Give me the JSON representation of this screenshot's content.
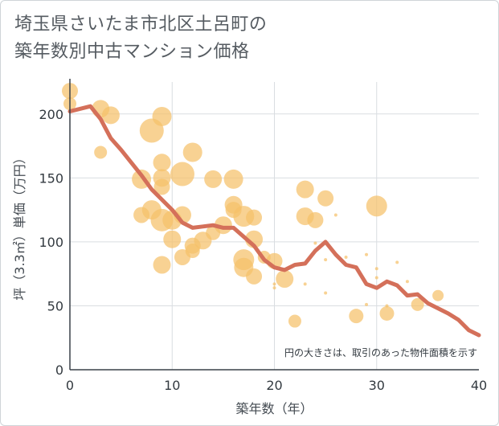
{
  "title": "埼玉県さいたま市北区土呂町の\n築年数別中古マンション価格",
  "chart_data": {
    "type": "scatter",
    "title": "埼玉県さいたま市北区土呂町の築年数別中古マンション価格",
    "xlabel": "築年数（年）",
    "ylabel": "坪（3.3㎡）単価（万円）",
    "xlim": [
      0,
      40
    ],
    "ylim": [
      0,
      225
    ],
    "xticks": [
      0,
      10,
      20,
      30,
      40
    ],
    "yticks": [
      0,
      50,
      100,
      150,
      200
    ],
    "grid": true,
    "note": "円の大きさは、取引のあった物件面積を示す",
    "colors": {
      "bubble": "#f5c06a",
      "line": "#d4705a",
      "grid": "#d9dde1"
    },
    "series": [
      {
        "kind": "bubble",
        "points": [
          {
            "x": 0,
            "y": 218,
            "s": 10
          },
          {
            "x": 0,
            "y": 208,
            "s": 8
          },
          {
            "x": 3,
            "y": 204,
            "s": 11
          },
          {
            "x": 4,
            "y": 199,
            "s": 11
          },
          {
            "x": 3,
            "y": 170,
            "s": 8
          },
          {
            "x": 8,
            "y": 187,
            "s": 15
          },
          {
            "x": 9,
            "y": 198,
            "s": 12
          },
          {
            "x": 9,
            "y": 162,
            "s": 11
          },
          {
            "x": 9,
            "y": 150,
            "s": 11
          },
          {
            "x": 9,
            "y": 143,
            "s": 10
          },
          {
            "x": 7,
            "y": 149,
            "s": 12
          },
          {
            "x": 11,
            "y": 153,
            "s": 15
          },
          {
            "x": 12,
            "y": 170,
            "s": 12
          },
          {
            "x": 7,
            "y": 121,
            "s": 10
          },
          {
            "x": 8,
            "y": 125,
            "s": 12
          },
          {
            "x": 9,
            "y": 117,
            "s": 14
          },
          {
            "x": 10,
            "y": 117,
            "s": 12
          },
          {
            "x": 11,
            "y": 121,
            "s": 11
          },
          {
            "x": 10,
            "y": 102,
            "s": 11
          },
          {
            "x": 12,
            "y": 97,
            "s": 10
          },
          {
            "x": 13,
            "y": 101,
            "s": 11
          },
          {
            "x": 12,
            "y": 93,
            "s": 9
          },
          {
            "x": 11,
            "y": 88,
            "s": 10
          },
          {
            "x": 9,
            "y": 82,
            "s": 11
          },
          {
            "x": 14,
            "y": 107,
            "s": 9
          },
          {
            "x": 14,
            "y": 149,
            "s": 11
          },
          {
            "x": 15,
            "y": 113,
            "s": 11
          },
          {
            "x": 16,
            "y": 149,
            "s": 12
          },
          {
            "x": 16,
            "y": 129,
            "s": 11
          },
          {
            "x": 16,
            "y": 125,
            "s": 10
          },
          {
            "x": 17,
            "y": 120,
            "s": 13
          },
          {
            "x": 18,
            "y": 119,
            "s": 10
          },
          {
            "x": 18,
            "y": 102,
            "s": 11
          },
          {
            "x": 17,
            "y": 86,
            "s": 13
          },
          {
            "x": 17,
            "y": 80,
            "s": 12
          },
          {
            "x": 18,
            "y": 73,
            "s": 10
          },
          {
            "x": 19,
            "y": 88,
            "s": 8
          },
          {
            "x": 20,
            "y": 85,
            "s": 10
          },
          {
            "x": 21,
            "y": 71,
            "s": 11
          },
          {
            "x": 20,
            "y": 67,
            "s": 2
          },
          {
            "x": 20,
            "y": 64,
            "s": 2
          },
          {
            "x": 22,
            "y": 38,
            "s": 8
          },
          {
            "x": 23,
            "y": 67,
            "s": 2
          },
          {
            "x": 23,
            "y": 141,
            "s": 11
          },
          {
            "x": 23,
            "y": 120,
            "s": 11
          },
          {
            "x": 24,
            "y": 117,
            "s": 10
          },
          {
            "x": 25,
            "y": 134,
            "s": 10
          },
          {
            "x": 24,
            "y": 99,
            "s": 2
          },
          {
            "x": 25,
            "y": 86,
            "s": 2
          },
          {
            "x": 25,
            "y": 60,
            "s": 2
          },
          {
            "x": 26,
            "y": 121,
            "s": 2
          },
          {
            "x": 27,
            "y": 88,
            "s": 2
          },
          {
            "x": 28,
            "y": 42,
            "s": 9
          },
          {
            "x": 29,
            "y": 90,
            "s": 2
          },
          {
            "x": 29,
            "y": 51,
            "s": 2
          },
          {
            "x": 30,
            "y": 128,
            "s": 13
          },
          {
            "x": 30,
            "y": 79,
            "s": 2
          },
          {
            "x": 30,
            "y": 72,
            "s": 2
          },
          {
            "x": 31,
            "y": 44,
            "s": 9
          },
          {
            "x": 31,
            "y": 50,
            "s": 2
          },
          {
            "x": 32,
            "y": 84,
            "s": 2
          },
          {
            "x": 33,
            "y": 69,
            "s": 2
          },
          {
            "x": 34,
            "y": 51,
            "s": 8
          },
          {
            "x": 36,
            "y": 58,
            "s": 7
          }
        ]
      },
      {
        "kind": "line",
        "x": [
          0,
          2,
          3,
          4,
          5,
          6,
          7,
          8,
          9,
          10,
          11,
          12,
          13,
          14,
          15,
          16,
          17,
          18,
          19,
          20,
          21,
          22,
          23,
          24,
          25,
          26,
          27,
          28,
          29,
          30,
          31,
          32,
          33,
          34,
          35,
          36,
          37,
          38,
          39,
          40
        ],
        "y": [
          202,
          206,
          196,
          181,
          172,
          162,
          152,
          141,
          133,
          125,
          115,
          111,
          112,
          113,
          111,
          111,
          104,
          97,
          86,
          80,
          78,
          82,
          83,
          93,
          100,
          90,
          82,
          80,
          67,
          64,
          69,
          66,
          58,
          59,
          52,
          48,
          44,
          39,
          31,
          27
        ]
      }
    ]
  }
}
